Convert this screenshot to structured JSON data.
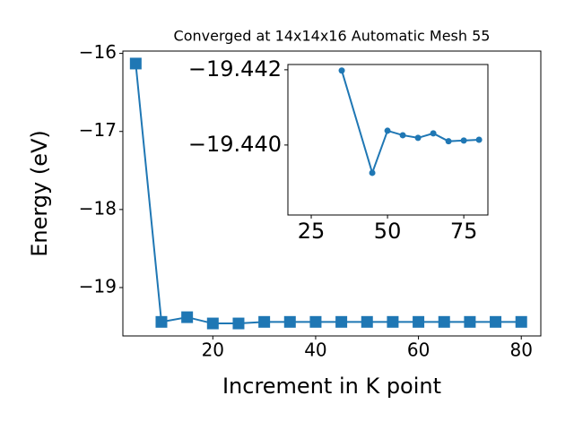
{
  "chart_data": [
    {
      "type": "line",
      "title": "Converged at 14x14x16 Automatic Mesh 55",
      "xlabel": "Increment in K point",
      "ylabel": "Energy (eV)",
      "x": [
        5,
        10,
        15,
        20,
        25,
        30,
        35,
        40,
        45,
        50,
        55,
        60,
        65,
        70,
        75,
        80
      ],
      "values": [
        -16.13,
        -19.44,
        -19.38,
        -19.46,
        -19.46,
        -19.44,
        -19.44,
        -19.44,
        -19.44,
        -19.44,
        -19.44,
        -19.44,
        -19.44,
        -19.44,
        -19.44,
        -19.44
      ],
      "color": "#1f77b4",
      "marker": "square",
      "xlim": [
        2.5,
        83.8
      ],
      "ylim": [
        -19.62,
        -15.97
      ],
      "xticks": [
        20,
        40,
        60,
        80
      ],
      "yticks": [
        {
          "value": -19,
          "label": "−19"
        },
        {
          "value": -18,
          "label": "−18"
        },
        {
          "value": -17,
          "label": "−17"
        },
        {
          "value": -16,
          "label": "−16"
        }
      ]
    },
    {
      "type": "line",
      "x": [
        35,
        45,
        50,
        55,
        60,
        65,
        70,
        75,
        80
      ],
      "values": [
        -19.44198,
        -19.43926,
        -19.44038,
        -19.44026,
        -19.44019,
        -19.44031,
        -19.4401,
        -19.44012,
        -19.44014
      ],
      "color": "#1f77b4",
      "marker": "circle",
      "xlim": [
        17.35,
        82.9
      ],
      "ylim": [
        -19.43814,
        -19.44214
      ],
      "xticks": [
        25,
        50,
        75
      ],
      "yticks": [
        {
          "value": -19.44,
          "label": "−19.440"
        },
        {
          "value": -19.442,
          "label": "−19.442"
        }
      ]
    }
  ]
}
